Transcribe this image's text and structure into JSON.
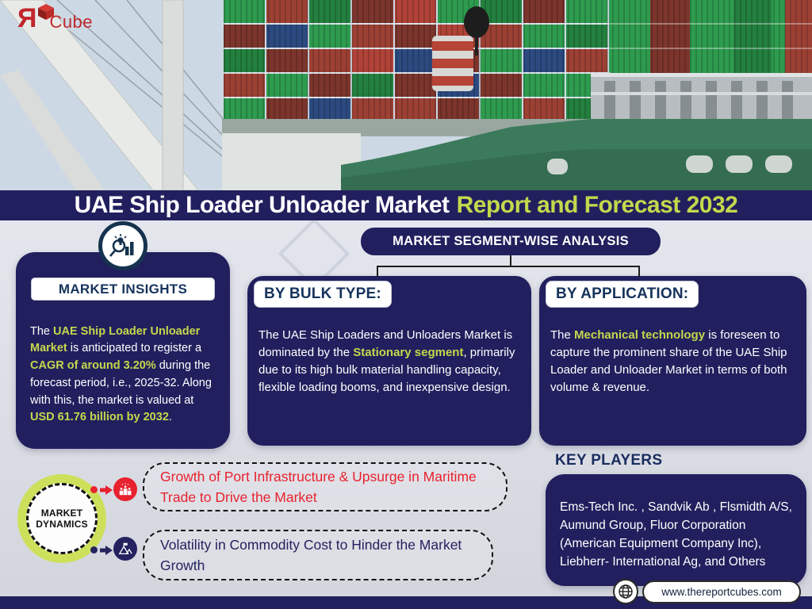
{
  "logo": {
    "letter": "Я",
    "word": "Cube"
  },
  "title": {
    "main": "UAE Ship Loader Unloader Market",
    "accent": "Report and Forecast 2032"
  },
  "market_insights": {
    "label": "MARKET INSIGHTS",
    "segments": [
      {
        "t": "The ",
        "h": false
      },
      {
        "t": "UAE Ship Loader Unloader Market",
        "h": true
      },
      {
        "t": " is anticipated to register a ",
        "h": false
      },
      {
        "t": "CAGR of around 3.20%",
        "h": true
      },
      {
        "t": " during the forecast period, i.e., 2025-32. Along with this, the market is valued at ",
        "h": false
      },
      {
        "t": "USD 61.76 billion by 2032",
        "h": true
      },
      {
        "t": ".",
        "h": false
      }
    ]
  },
  "segment_analysis": {
    "title": "MARKET SEGMENT-WISE ANALYSIS",
    "bulk_type": {
      "label": "BY BULK TYPE:",
      "segments": [
        {
          "t": "The UAE Ship Loaders and Unloaders Market is dominated by the ",
          "h": false
        },
        {
          "t": "Stationary segment",
          "h": true
        },
        {
          "t": ", primarily due to its high bulk material handling capacity, flexible loading booms, and inexpensive design.",
          "h": false
        }
      ]
    },
    "application": {
      "label": "BY APPLICATION:",
      "segments": [
        {
          "t": "The ",
          "h": false
        },
        {
          "t": "Mechanical technology",
          "h": true
        },
        {
          "t": " is foreseen to capture the prominent share of the UAE Ship Loader and Unloader Market in terms of both volume & revenue.",
          "h": false
        }
      ]
    }
  },
  "market_dynamics": {
    "line1": "MARKET",
    "line2": "DYNAMICS",
    "driver": "Growth of Port Infrastructure & Upsurge in Maritime Trade to Drive the Market",
    "restraint": "Volatility in Commodity Cost to Hinder the Market Growth"
  },
  "key_players": {
    "label": "KEY PLAYERS",
    "companies": "Ems-Tech Inc. , Sandvik Ab , Flsmidth A/S, Aumund Group, Fluor Corporation (American Equipment Company Inc), Liebherr- International Ag, and Others"
  },
  "footer": {
    "website": "www.thereportcubes.com"
  },
  "icons": {
    "logo_cube": "red-cube-icon",
    "insights": "magnifier-bulb-chart-icon",
    "driver": "podium-people-icon",
    "restraint": "mountain-flag-icon",
    "globe": "globe-icon"
  },
  "colors": {
    "navy": "#221f5e",
    "accent_green": "#c3d84c",
    "lime_ring": "#cde05b",
    "driver_red": "#e8212e",
    "label_navy": "#16335c"
  }
}
